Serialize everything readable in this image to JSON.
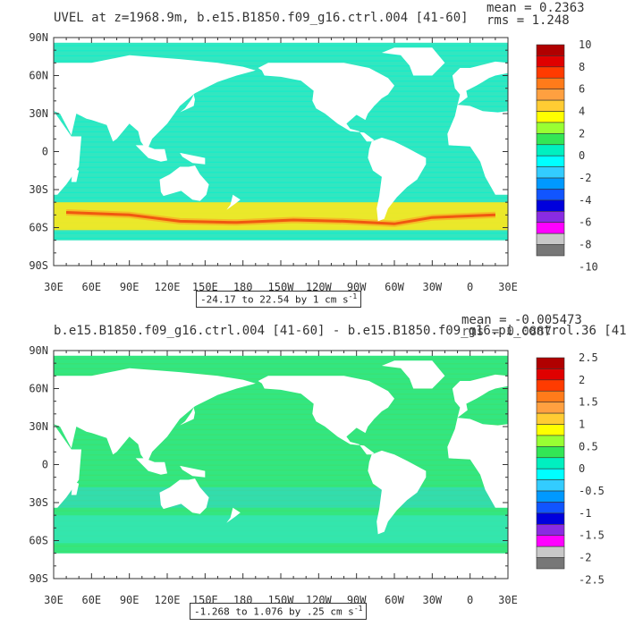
{
  "panels": [
    {
      "title": "UVEL at z=1968.9m, b.e15.B1850.f09_g16.ctrl.004 [41-60]",
      "mean_label": "mean = 0.2363",
      "rms_label": "rms = 1.248",
      "range_label": "-24.17 to 22.54 by 1 cm s",
      "range_exp": "-1",
      "colorbar_labels": [
        "10",
        "8",
        "6",
        "4",
        "2",
        "0",
        "-2",
        "-4",
        "-6",
        "-8",
        "-10"
      ],
      "colors": [
        "#b00000",
        "#e00000",
        "#ff3b00",
        "#ff7b1a",
        "#ffa040",
        "#ffcc33",
        "#ffff00",
        "#99ff33",
        "#33e655",
        "#00f0c0",
        "#00ffff",
        "#33ccff",
        "#0099ff",
        "#1155ff",
        "#0000dd",
        "#8a2be2",
        "#ff00ff",
        "#c8c8c8",
        "#777777"
      ],
      "ocean_color": "#33e6c0",
      "jet_color": "#ffe81a"
    },
    {
      "title": "b.e15.B1850.f09_g16.ctrl.004 [41-60] - b.e15.B1850.f09_g16.pi_control.36 [41-",
      "mean_label": "mean = -0.005473",
      "rms_label": "rms = 0.0887",
      "range_label": "-1.268 to 1.076 by .25 cm s",
      "range_exp": "-1",
      "colorbar_labels": [
        "2.5",
        "2",
        "1.5",
        "1",
        "0.5",
        "0",
        "-0.5",
        "-1",
        "-1.5",
        "-2",
        "-2.5"
      ],
      "colors": [
        "#b00000",
        "#e00000",
        "#ff3b00",
        "#ff7b1a",
        "#ffa040",
        "#ffcc33",
        "#ffff00",
        "#99ff33",
        "#33e655",
        "#00f0c0",
        "#00ffff",
        "#33ccff",
        "#0099ff",
        "#1155ff",
        "#0000dd",
        "#8a2be2",
        "#ff00ff",
        "#c8c8c8",
        "#777777"
      ],
      "ocean_color": "#33e680",
      "jet_color": "#33e6c0"
    }
  ],
  "axes": {
    "lat_labels": [
      "90N",
      "60N",
      "30N",
      "0",
      "30S",
      "60S",
      "90S"
    ],
    "lon_labels": [
      "30E",
      "60E",
      "90E",
      "120E",
      "150E",
      "180",
      "150W",
      "120W",
      "90W",
      "60W",
      "30W",
      "0",
      "30E"
    ]
  }
}
